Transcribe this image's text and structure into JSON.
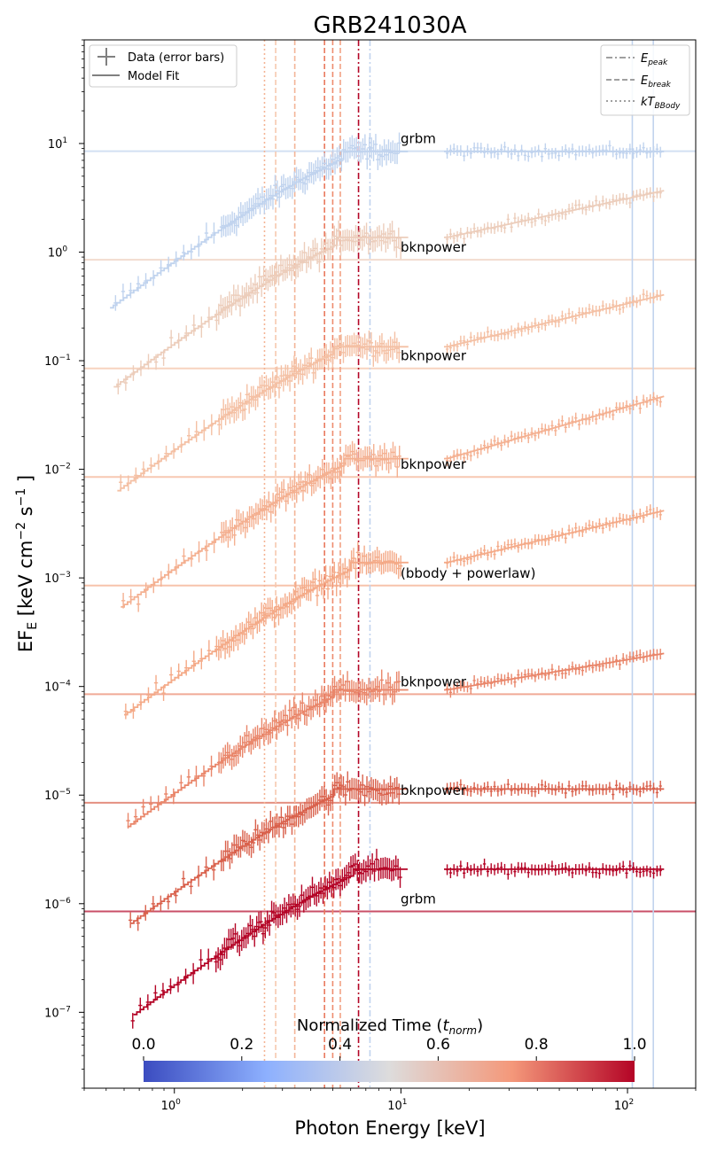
{
  "chart_data": {
    "type": "scatter",
    "title": "GRB241030A",
    "xlabel": "Photon Energy [keV]",
    "ylabel_parts": {
      "main": "EF",
      "sub": "E",
      "units": " [keV cm",
      "exp1": "−2",
      "s": " s",
      "exp2": "−1",
      "close": " ]"
    },
    "x_scale": "log",
    "y_scale": "log",
    "xlim": [
      0.4,
      200
    ],
    "ylim": [
      2e-08,
      90
    ],
    "x_ticks": [
      {
        "value": 1,
        "base": "10",
        "exp": "0"
      },
      {
        "value": 10,
        "base": "10",
        "exp": "1"
      },
      {
        "value": 100,
        "base": "10",
        "exp": "2"
      }
    ],
    "y_ticks": [
      {
        "value": 1e-07,
        "base": "10",
        "exp": "−7"
      },
      {
        "value": 1e-06,
        "base": "10",
        "exp": "−6"
      },
      {
        "value": 1e-05,
        "base": "10",
        "exp": "−5"
      },
      {
        "value": 0.0001,
        "base": "10",
        "exp": "−4"
      },
      {
        "value": 0.001,
        "base": "10",
        "exp": "−3"
      },
      {
        "value": 0.01,
        "base": "10",
        "exp": "−2"
      },
      {
        "value": 0.1,
        "base": "10",
        "exp": "−1"
      },
      {
        "value": 1,
        "base": "10",
        "exp": "0"
      },
      {
        "value": 10,
        "base": "10",
        "exp": "1"
      }
    ],
    "series": [
      {
        "name": "grbm",
        "label": "grbm",
        "color": "#c0d3ee",
        "offset": 8.5,
        "model_type": "flat",
        "f0": 0.35,
        "e_char": 5.5
      },
      {
        "name": "bknpower-1",
        "label": "bknpower",
        "color": "#eccdbb",
        "offset": 0.85,
        "model_type": "bkn",
        "f0": 0.062,
        "e_char": 5.2,
        "slope_hi": 0.45
      },
      {
        "name": "bknpower-2",
        "label": "bknpower",
        "color": "#f4c0a4",
        "offset": 0.085,
        "model_type": "bkn",
        "f0": 0.0065,
        "e_char": 5.0,
        "slope_hi": 0.5
      },
      {
        "name": "bknpower-3",
        "label": "bknpower",
        "color": "#f4b091",
        "offset": 0.0085,
        "model_type": "bkn",
        "f0": 0.00052,
        "e_char": 5.5,
        "slope_hi": 0.6
      },
      {
        "name": "bbody-powerlaw",
        "label": "(bbody + powerlaw)",
        "color": "#f4aa88",
        "offset": 0.00085,
        "model_type": "bkn",
        "f0": 5e-05,
        "e_char": 6.0,
        "slope_hi": 0.5
      },
      {
        "name": "bknpower-4",
        "label": "bknpower",
        "color": "#e9866a",
        "offset": 8.5e-05,
        "model_type": "bkn",
        "f0": 4.5e-06,
        "e_char": 5.0,
        "slope_hi": 0.35
      },
      {
        "name": "bknpower-5",
        "label": "bknpower",
        "color": "#d9614c",
        "offset": 8.5e-06,
        "model_type": "flat",
        "f0": 5.5e-07,
        "e_char": 5.0
      },
      {
        "name": "grbm-2",
        "label": "grbm",
        "color": "#b40426",
        "offset": 8.5e-07,
        "model_type": "flat",
        "f0": 7.5e-08,
        "e_char": 6.0
      }
    ],
    "vlines": [
      {
        "x": 2.5,
        "style": "dotted",
        "color": "#f4b495"
      },
      {
        "x": 2.8,
        "style": "dashed",
        "color": "#f6c8af"
      },
      {
        "x": 3.4,
        "style": "dashed",
        "color": "#f3b598"
      },
      {
        "x": 4.6,
        "style": "dashed",
        "color": "#e9785d"
      },
      {
        "x": 5.0,
        "style": "dashed",
        "color": "#ee8b6d"
      },
      {
        "x": 5.4,
        "style": "dashed",
        "color": "#f2a183"
      },
      {
        "x": 6.5,
        "style": "dashdot",
        "color": "#b40426"
      },
      {
        "x": 7.3,
        "style": "dashdot",
        "color": "#c0d3ee"
      },
      {
        "x": 105,
        "style": "solid",
        "color": "#c0d3ee"
      },
      {
        "x": 130,
        "style": "solid",
        "color": "#c0d3ee"
      }
    ],
    "legend_left": [
      {
        "label": "Data (error bars)",
        "style": "errorbar"
      },
      {
        "label": "Model Fit",
        "style": "solid"
      }
    ],
    "legend_right": [
      {
        "label_main": "E",
        "label_sub": "peak",
        "style": "dashdot"
      },
      {
        "label_main": "E",
        "label_sub": "break",
        "style": "dashed"
      },
      {
        "label_main": "kT",
        "label_sub": "BBody",
        "style": "dotted"
      }
    ],
    "colorbar": {
      "title": "Normalized Time (",
      "title_italic": "t",
      "title_sub": "norm",
      "title_close": ")",
      "ticks": [
        "0.0",
        "0.2",
        "0.4",
        "0.6",
        "0.8",
        "1.0"
      ],
      "tick_values": [
        0.0,
        0.2,
        0.4,
        0.6,
        0.8,
        1.0
      ],
      "stops": [
        "#3b4cc0",
        "#8db0fe",
        "#dddcdc",
        "#f4987a",
        "#b40426"
      ]
    }
  }
}
